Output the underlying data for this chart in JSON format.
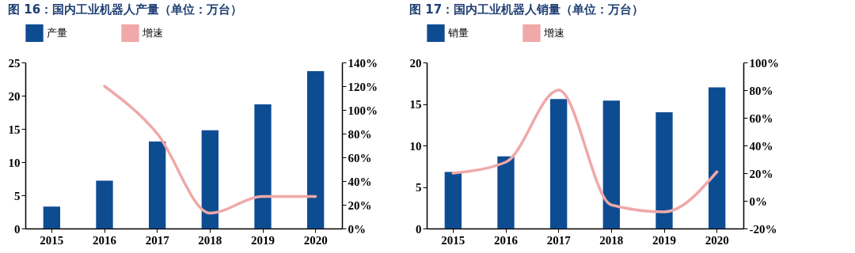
{
  "chart_data": [
    {
      "type": "bar",
      "title": "图 16：国内工业机器人产量（单位：万台）",
      "categories": [
        "2015",
        "2016",
        "2017",
        "2018",
        "2019",
        "2020"
      ],
      "series": [
        {
          "name": "产量",
          "color": "#0e4c92",
          "values": [
            3.3,
            7.2,
            13.1,
            14.8,
            18.7,
            23.7
          ]
        },
        {
          "name": "增速",
          "type": "line",
          "axis": "y2",
          "color": "#f0a8a8",
          "values": [
            null,
            120,
            80,
            13,
            27,
            27
          ]
        }
      ],
      "ylim": [
        0,
        25
      ],
      "yticks": [
        0,
        5,
        10,
        15,
        20,
        25
      ],
      "y2lim": [
        0,
        140
      ],
      "y2ticks": [
        {
          "value": 0,
          "label": "0%"
        },
        {
          "value": 20,
          "label": "20%"
        },
        {
          "value": 40,
          "label": "40%"
        },
        {
          "value": 60,
          "label": "60%"
        },
        {
          "value": 80,
          "label": "80%"
        },
        {
          "value": 100,
          "label": "100%"
        },
        {
          "value": 120,
          "label": "120%"
        },
        {
          "value": 140,
          "label": "140%"
        }
      ],
      "legend": "top",
      "grid": false
    },
    {
      "type": "bar",
      "title": "图 17：国内工业机器人销量（单位：万台）",
      "categories": [
        "2015",
        "2016",
        "2017",
        "2018",
        "2019",
        "2020"
      ],
      "series": [
        {
          "name": "销量",
          "color": "#0e4c92",
          "values": [
            6.8,
            8.7,
            15.6,
            15.4,
            14.0,
            17.0
          ]
        },
        {
          "name": "增速",
          "type": "line",
          "axis": "y2",
          "color": "#f0a8a8",
          "values": [
            20,
            28,
            80,
            -3,
            -8,
            21
          ]
        }
      ],
      "ylim": [
        0,
        20
      ],
      "yticks": [
        0,
        5,
        10,
        15,
        20
      ],
      "y2lim": [
        -20,
        100
      ],
      "y2ticks": [
        {
          "value": -20,
          "label": "-20%"
        },
        {
          "value": 0,
          "label": "0%"
        },
        {
          "value": 20,
          "label": "20%"
        },
        {
          "value": 40,
          "label": "40%"
        },
        {
          "value": 60,
          "label": "60%"
        },
        {
          "value": 80,
          "label": "80%"
        },
        {
          "value": 100,
          "label": "100%"
        }
      ],
      "legend": "top",
      "grid": false
    }
  ]
}
